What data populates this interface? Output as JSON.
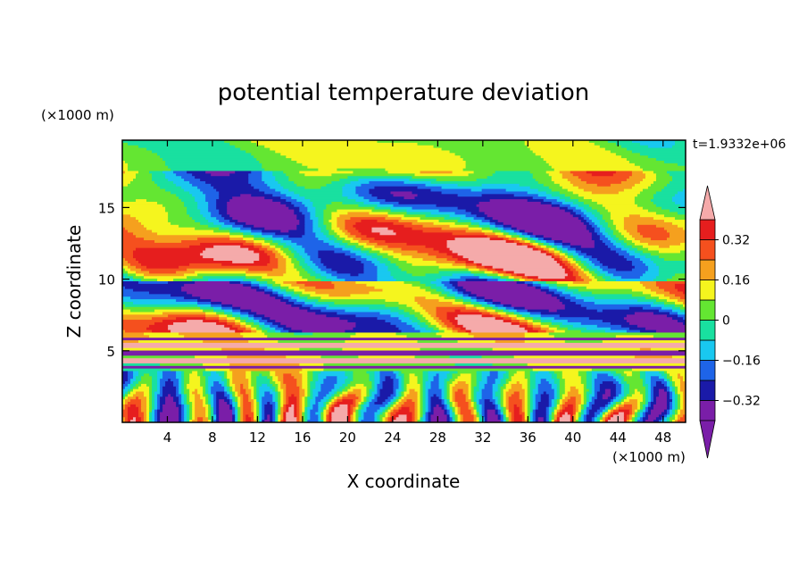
{
  "chart_data": {
    "type": "heatmap",
    "title": "potential temperature deviation",
    "xlabel": "X coordinate",
    "ylabel": "Z coordinate",
    "x_unit": "(×1000 m)",
    "y_unit": "(×1000 m)",
    "time_label": "t=1.9332e+06",
    "xlim": [
      0,
      50
    ],
    "ylim": [
      0,
      19.7
    ],
    "x_ticks": [
      4,
      8,
      12,
      16,
      20,
      24,
      28,
      32,
      36,
      40,
      44,
      48
    ],
    "x_tick_labels": [
      "4",
      "8",
      "12",
      "16",
      "20",
      "24",
      "28",
      "32",
      "36",
      "40",
      "44",
      "48"
    ],
    "y_ticks": [
      5,
      10,
      15
    ],
    "y_tick_labels": [
      "5",
      "10",
      "15"
    ],
    "colorbar": {
      "levels": [
        -0.4,
        -0.32,
        -0.24,
        -0.16,
        -0.08,
        0,
        0.08,
        0.16,
        0.24,
        0.32,
        0.4
      ],
      "tick_values": [
        -0.32,
        -0.16,
        0,
        0.16,
        0.32
      ],
      "tick_labels": [
        "−0.32",
        "−0.16",
        "0",
        "0.16",
        "0.32"
      ],
      "colors": [
        "#7a1ea8",
        "#1a1aa8",
        "#1e64e8",
        "#19c8f0",
        "#19e0a0",
        "#64e632",
        "#f5f51e",
        "#f5a01e",
        "#f5501e",
        "#e61e1e"
      ],
      "under_color": "#7a1ea8",
      "over_color": "#f5aaaa",
      "extend": "both"
    }
  }
}
